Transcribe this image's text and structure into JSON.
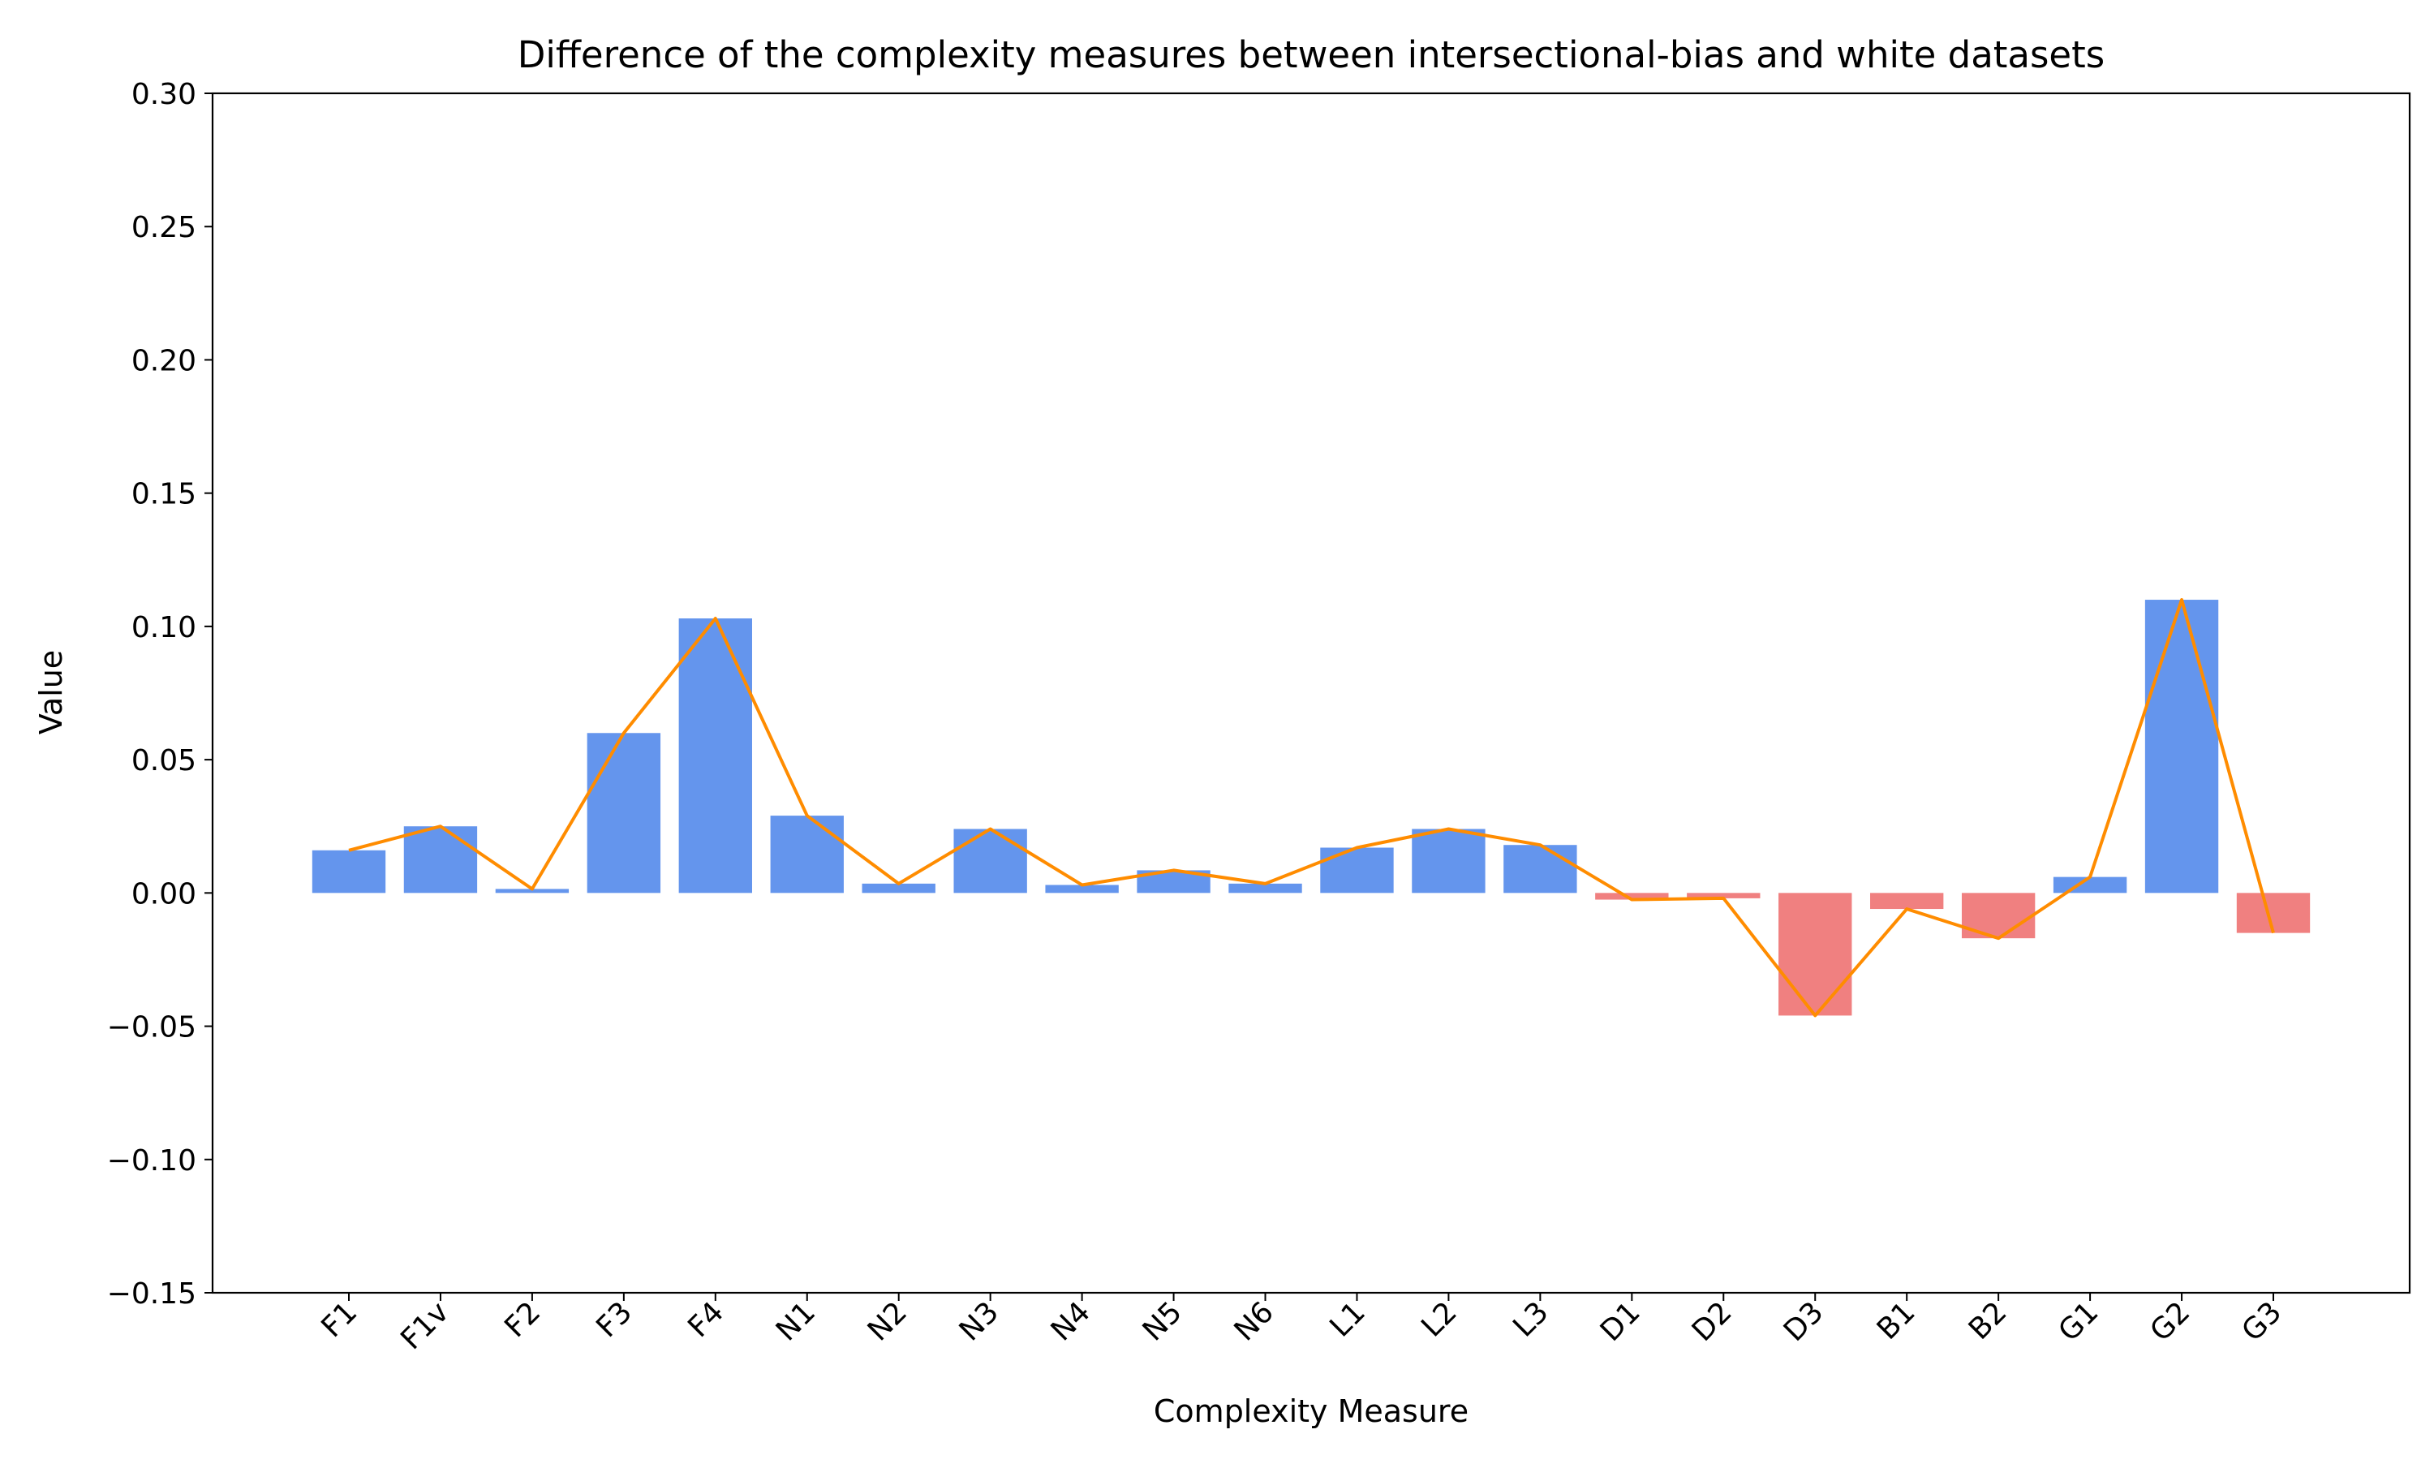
{
  "chart_data": {
    "type": "bar",
    "title": "Difference of the complexity measures between intersectional-bias and white datasets",
    "xlabel": "Complexity Measure",
    "ylabel": "Value",
    "ylim": [
      -0.15,
      0.3
    ],
    "yticks": [
      -0.15,
      -0.1,
      -0.05,
      0.0,
      0.05,
      0.1,
      0.15,
      0.2,
      0.25,
      0.3
    ],
    "ytick_labels": [
      "−0.15",
      "−0.10",
      "−0.05",
      "0.00",
      "0.05",
      "0.10",
      "0.15",
      "0.20",
      "0.25",
      "0.30"
    ],
    "categories": [
      "F1",
      "F1v",
      "F2",
      "F3",
      "F4",
      "N1",
      "N2",
      "N3",
      "N4",
      "N5",
      "N6",
      "L1",
      "L2",
      "L3",
      "D1",
      "D2",
      "D3",
      "B1",
      "B2",
      "G1",
      "G2",
      "G3"
    ],
    "values": [
      0.016,
      0.025,
      0.0015,
      0.06,
      0.103,
      0.029,
      0.0035,
      0.024,
      0.003,
      0.0085,
      0.0035,
      0.017,
      0.024,
      0.018,
      -0.0025,
      -0.002,
      -0.046,
      -0.006,
      -0.017,
      0.006,
      0.11,
      -0.015
    ],
    "overlay_line": true,
    "grid": false,
    "legend": "none",
    "colors": {
      "positive": "#6495ed",
      "negative": "#f08080",
      "line": "#ff8c00",
      "axis": "#000000"
    }
  }
}
